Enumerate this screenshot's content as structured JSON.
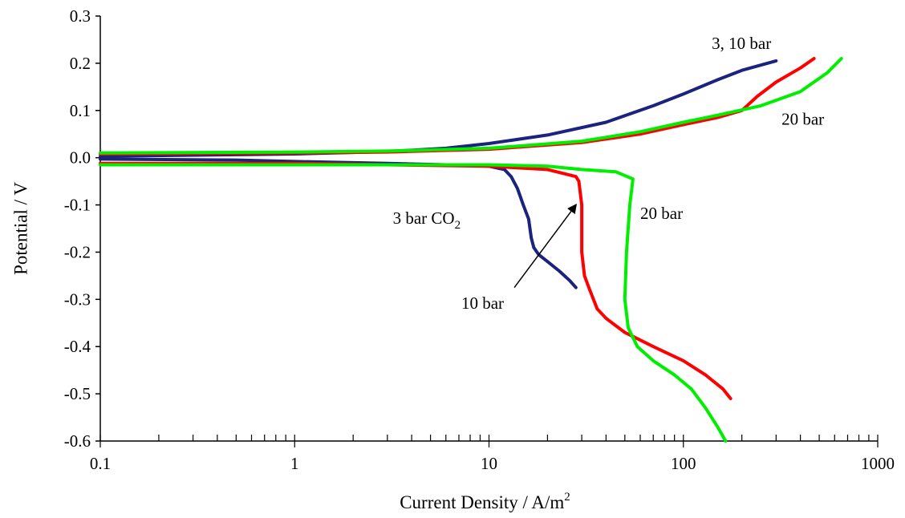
{
  "chart_data": {
    "type": "line",
    "title": "",
    "xlabel": "Current Density / A/m",
    "xlabel_sup": "2",
    "ylabel": "Potential / V",
    "x_scale": "log",
    "xlim": [
      0.1,
      1000
    ],
    "ylim": [
      -0.6,
      0.3
    ],
    "x_ticks": [
      "0.1",
      "1",
      "10",
      "100",
      "1000"
    ],
    "y_ticks": [
      "0.3",
      "0.2",
      "0.1",
      "0.0",
      "-0.1",
      "-0.2",
      "-0.3",
      "-0.4",
      "-0.5",
      "-0.6"
    ],
    "y_tick_values": [
      0.3,
      0.2,
      0.1,
      0.0,
      -0.1,
      -0.2,
      -0.3,
      -0.4,
      -0.5,
      -0.6
    ],
    "x_tick_values": [
      0.1,
      1,
      10,
      100,
      1000
    ],
    "grid": false,
    "legend": "none",
    "series": [
      {
        "color": "#1a237e",
        "branch": "anodic",
        "x": [
          0.1,
          1,
          3,
          6,
          10,
          20,
          40,
          70,
          100,
          150,
          200,
          300
        ],
        "y": [
          0.003,
          0.008,
          0.013,
          0.02,
          0.03,
          0.048,
          0.075,
          0.11,
          0.135,
          0.165,
          0.185,
          0.205
        ]
      },
      {
        "color": "#1a237e",
        "branch": "cathodic",
        "x": [
          0.1,
          0.5,
          1,
          3,
          6,
          10,
          12,
          13,
          14,
          15,
          16,
          16.5,
          17,
          18,
          20,
          23,
          26,
          28
        ],
        "y": [
          -0.003,
          -0.005,
          -0.008,
          -0.012,
          -0.015,
          -0.018,
          -0.025,
          -0.04,
          -0.065,
          -0.1,
          -0.13,
          -0.17,
          -0.19,
          -0.205,
          -0.22,
          -0.24,
          -0.26,
          -0.275
        ]
      },
      {
        "color": "#ff0000",
        "branch": "anodic",
        "x": [
          0.1,
          1,
          3,
          10,
          30,
          60,
          100,
          150,
          200,
          240,
          300,
          400,
          470
        ],
        "y": [
          0.008,
          0.01,
          0.012,
          0.018,
          0.032,
          0.05,
          0.07,
          0.085,
          0.1,
          0.13,
          0.16,
          0.19,
          0.21
        ]
      },
      {
        "color": "#ff0000",
        "branch": "cathodic",
        "x": [
          0.1,
          1,
          3,
          10,
          20,
          28,
          29,
          30,
          30,
          31,
          33,
          36,
          40,
          50,
          70,
          100,
          130,
          160,
          175
        ],
        "y": [
          -0.012,
          -0.012,
          -0.015,
          -0.018,
          -0.025,
          -0.04,
          -0.05,
          -0.1,
          -0.2,
          -0.25,
          -0.28,
          -0.32,
          -0.34,
          -0.37,
          -0.4,
          -0.43,
          -0.46,
          -0.49,
          -0.51
        ]
      },
      {
        "color": "#00ee00",
        "branch": "anodic",
        "x": [
          0.1,
          1,
          3,
          10,
          30,
          60,
          100,
          150,
          250,
          400,
          550,
          650
        ],
        "y": [
          0.01,
          0.012,
          0.014,
          0.02,
          0.035,
          0.055,
          0.075,
          0.09,
          0.11,
          0.14,
          0.18,
          0.21
        ]
      },
      {
        "color": "#00ee00",
        "branch": "cathodic",
        "x": [
          0.1,
          1,
          3,
          10,
          20,
          30,
          45,
          55,
          53,
          51,
          50,
          52,
          58,
          70,
          90,
          110,
          130,
          150,
          165
        ],
        "y": [
          -0.015,
          -0.015,
          -0.015,
          -0.015,
          -0.018,
          -0.025,
          -0.03,
          -0.045,
          -0.1,
          -0.2,
          -0.3,
          -0.36,
          -0.4,
          -0.43,
          -0.46,
          -0.49,
          -0.53,
          -0.57,
          -0.6
        ]
      }
    ],
    "annotations": [
      {
        "text": "3, 10 bar",
        "x": 140,
        "y": 0.23
      },
      {
        "text": "20 bar",
        "x": 320,
        "y": 0.07
      },
      {
        "text": "3 bar CO",
        "sub": "2",
        "x": 3.2,
        "y": -0.14
      },
      {
        "text": "20 bar",
        "x": 60,
        "y": -0.13
      },
      {
        "text": "10 bar",
        "x": 7.2,
        "y": -0.32
      }
    ],
    "arrow": {
      "from": [
        13.5,
        -0.275
      ],
      "to": [
        28,
        -0.1
      ]
    }
  }
}
